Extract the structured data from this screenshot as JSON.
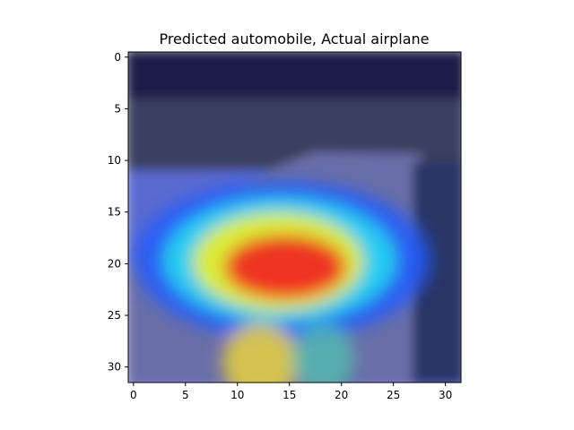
{
  "chart_data": {
    "type": "heatmap",
    "title": "Predicted automobile, Actual airplane",
    "xlabel": "",
    "ylabel": "",
    "xlim": [
      -0.5,
      31.5
    ],
    "ylim": [
      31.5,
      -0.5
    ],
    "xticks": [
      0,
      5,
      10,
      15,
      20,
      25,
      30
    ],
    "yticks": [
      0,
      5,
      10,
      15,
      20,
      25,
      30
    ],
    "grid": false,
    "colormap": "jet",
    "background": {
      "dark_top": "#1b1d4a",
      "mid_band": "#3a4060",
      "road": "#6a6ea8",
      "right_edge": "#2c3566",
      "overlay": "#5a6ad0"
    },
    "heat_centers": [
      {
        "x": 15,
        "y": 20.5,
        "value": 1.0
      },
      {
        "x": 11.5,
        "y": 30,
        "value": 0.55
      },
      {
        "x": 19,
        "y": 19.5,
        "value": 0.6
      }
    ]
  }
}
